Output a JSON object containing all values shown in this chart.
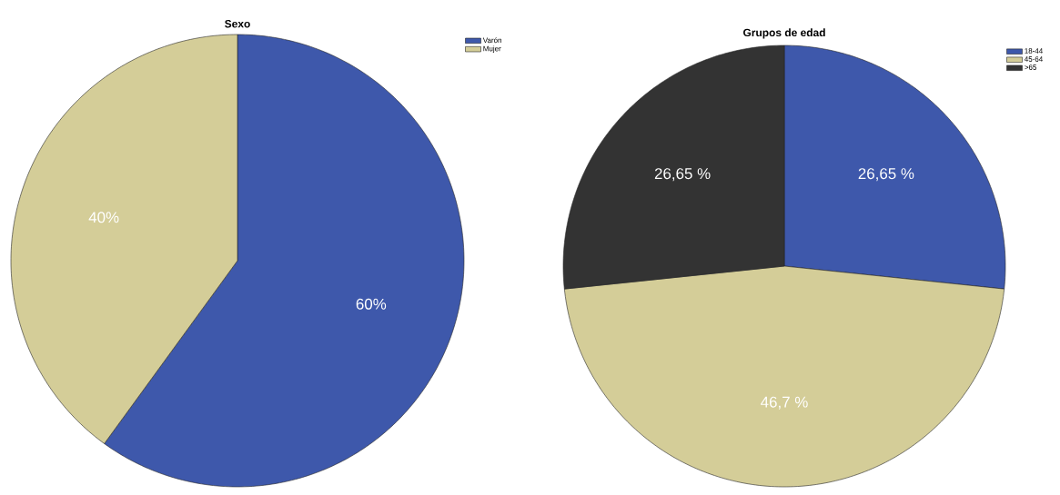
{
  "chart_data": [
    {
      "type": "pie",
      "title": "Sexo",
      "categories": [
        "Varón",
        "Mujer"
      ],
      "values": [
        60,
        40
      ],
      "colors": [
        "#3e58ab",
        "#d4cd98"
      ],
      "value_labels": [
        "60%",
        "40%"
      ],
      "legend": "top right"
    },
    {
      "type": "pie",
      "title": "Grupos de edad",
      "categories": [
        "18-44",
        "45-64",
        ">65"
      ],
      "values": [
        26.65,
        46.7,
        26.65
      ],
      "colors": [
        "#3e58ab",
        "#d4cd98",
        "#333333"
      ],
      "value_labels": [
        "26,65 %",
        "46,7 %",
        "26,65 %"
      ],
      "legend": "top right"
    }
  ]
}
